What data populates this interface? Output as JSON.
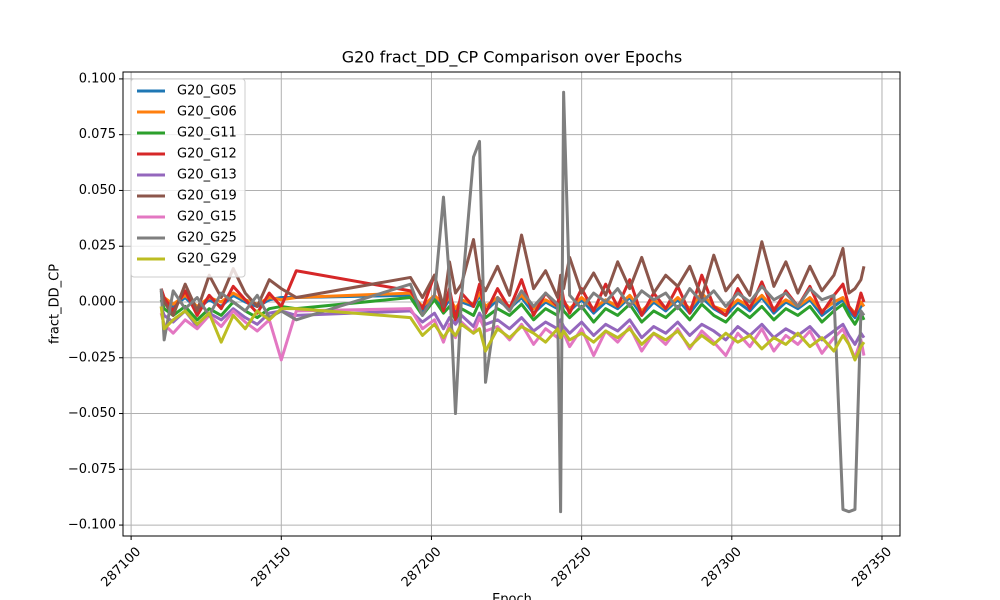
{
  "chart_data": {
    "type": "line",
    "title": "G20 fract_DD_CP Comparison over Epochs",
    "xlabel": "Epoch",
    "ylabel": "fract_DD_CP",
    "x": [
      287110,
      287111,
      287114,
      287118,
      287122,
      287126,
      287130,
      287134,
      287138,
      287142,
      287146,
      287150,
      287155,
      287193,
      287197,
      287201,
      287204,
      287206,
      287208,
      287210,
      287214,
      287216,
      287218,
      287222,
      287226,
      287230,
      287234,
      287238,
      287242,
      287243,
      287244,
      287246,
      287250,
      287254,
      287258,
      287262,
      287266,
      287270,
      287274,
      287278,
      287282,
      287286,
      287290,
      287294,
      287298,
      287302,
      287306,
      287310,
      287314,
      287318,
      287322,
      287326,
      287330,
      287334,
      287337,
      287339,
      287341,
      287343,
      287344
    ],
    "series": [
      {
        "name": "G20_G05",
        "color": "#1f77b4",
        "values": [
          0.003,
          0.001,
          -0.002,
          0.002,
          -0.003,
          0.001,
          -0.002,
          0.003,
          0.0,
          -0.002,
          0.001,
          0.002,
          0.002,
          0.003,
          -0.004,
          0.002,
          -0.003,
          0.001,
          -0.005,
          0.0,
          -0.002,
          0.003,
          -0.004,
          0.001,
          -0.003,
          0.002,
          -0.005,
          0.0,
          -0.003,
          0.002,
          -0.001,
          -0.004,
          0.001,
          -0.005,
          0.0,
          -0.003,
          0.002,
          -0.006,
          0.0,
          -0.004,
          0.001,
          -0.005,
          0.002,
          -0.003,
          -0.006,
          0.0,
          -0.004,
          0.002,
          -0.005,
          0.0,
          -0.003,
          0.001,
          -0.006,
          -0.002,
          0.001,
          -0.004,
          -0.007,
          -0.002,
          -0.001
        ]
      },
      {
        "name": "G20_G06",
        "color": "#ff7f0e",
        "values": [
          0.004,
          0.002,
          -0.001,
          0.003,
          -0.002,
          0.002,
          0.0,
          0.004,
          0.001,
          -0.001,
          0.002,
          0.001,
          0.002,
          0.004,
          -0.002,
          0.003,
          -0.001,
          0.002,
          -0.003,
          0.001,
          -0.001,
          0.004,
          -0.002,
          0.002,
          -0.002,
          0.003,
          -0.003,
          0.001,
          -0.002,
          0.003,
          0.0,
          -0.003,
          0.002,
          -0.003,
          0.001,
          -0.002,
          0.003,
          -0.004,
          0.001,
          -0.003,
          0.002,
          -0.003,
          0.004,
          -0.002,
          -0.004,
          0.001,
          -0.002,
          0.003,
          -0.003,
          0.001,
          -0.002,
          0.002,
          -0.004,
          0.0,
          0.002,
          -0.002,
          -0.005,
          0.0,
          -0.002
        ]
      },
      {
        "name": "G20_G11",
        "color": "#2ca02c",
        "values": [
          0.001,
          -0.003,
          -0.006,
          -0.002,
          -0.008,
          -0.003,
          -0.006,
          0.0,
          -0.004,
          -0.007,
          -0.003,
          -0.002,
          -0.003,
          0.002,
          -0.006,
          0.001,
          -0.005,
          -0.002,
          -0.008,
          -0.003,
          -0.006,
          0.0,
          -0.007,
          -0.003,
          -0.006,
          -0.001,
          -0.008,
          -0.003,
          -0.006,
          0.0,
          -0.004,
          -0.007,
          -0.002,
          -0.009,
          -0.003,
          -0.006,
          -0.001,
          -0.009,
          -0.004,
          -0.007,
          -0.002,
          -0.008,
          -0.001,
          -0.006,
          -0.009,
          -0.003,
          -0.007,
          -0.002,
          -0.008,
          -0.003,
          -0.006,
          -0.002,
          -0.009,
          -0.004,
          -0.001,
          -0.006,
          -0.01,
          -0.005,
          -0.008
        ]
      },
      {
        "name": "G20_G12",
        "color": "#d62728",
        "values": [
          0.006,
          0.002,
          -0.004,
          0.005,
          -0.006,
          0.003,
          -0.003,
          0.007,
          0.001,
          -0.005,
          0.004,
          -0.002,
          0.014,
          0.005,
          -0.003,
          0.012,
          -0.004,
          0.006,
          -0.008,
          0.004,
          -0.002,
          0.008,
          -0.005,
          0.006,
          -0.003,
          0.01,
          -0.006,
          0.004,
          -0.002,
          0.009,
          0.001,
          -0.005,
          0.006,
          -0.004,
          0.008,
          -0.002,
          0.01,
          -0.006,
          0.004,
          -0.003,
          0.007,
          -0.005,
          0.012,
          -0.002,
          -0.006,
          0.006,
          -0.003,
          0.009,
          -0.004,
          0.005,
          -0.002,
          0.007,
          -0.005,
          0.003,
          0.008,
          -0.002,
          -0.006,
          0.004,
          0.0
        ]
      },
      {
        "name": "G20_G13",
        "color": "#9467bd",
        "values": [
          -0.002,
          -0.006,
          -0.009,
          -0.004,
          -0.011,
          -0.005,
          -0.008,
          -0.003,
          -0.007,
          -0.01,
          -0.005,
          -0.004,
          -0.006,
          -0.004,
          -0.009,
          -0.005,
          -0.012,
          -0.007,
          -0.01,
          -0.006,
          -0.011,
          -0.005,
          -0.01,
          -0.008,
          -0.012,
          -0.007,
          -0.013,
          -0.009,
          -0.012,
          -0.008,
          -0.011,
          -0.014,
          -0.009,
          -0.015,
          -0.01,
          -0.013,
          -0.008,
          -0.016,
          -0.011,
          -0.014,
          -0.009,
          -0.015,
          -0.01,
          -0.013,
          -0.017,
          -0.011,
          -0.015,
          -0.01,
          -0.016,
          -0.012,
          -0.015,
          -0.011,
          -0.017,
          -0.013,
          -0.01,
          -0.015,
          -0.019,
          -0.014,
          -0.016
        ]
      },
      {
        "name": "G20_G19",
        "color": "#8c564b",
        "values": [
          0.005,
          0.0,
          -0.006,
          0.008,
          -0.004,
          0.012,
          0.002,
          0.015,
          0.004,
          -0.002,
          0.01,
          0.006,
          0.002,
          0.011,
          0.002,
          0.012,
          -0.002,
          0.018,
          0.004,
          0.008,
          0.028,
          0.01,
          0.005,
          0.016,
          0.003,
          0.03,
          0.006,
          0.014,
          0.002,
          0.012,
          0.006,
          0.02,
          0.004,
          0.013,
          0.003,
          0.018,
          0.006,
          0.02,
          0.004,
          0.012,
          0.007,
          0.016,
          0.002,
          0.021,
          0.005,
          0.012,
          0.003,
          0.027,
          0.007,
          0.018,
          0.004,
          0.016,
          0.005,
          0.012,
          0.024,
          0.004,
          0.006,
          0.01,
          0.016
        ]
      },
      {
        "name": "G20_G15",
        "color": "#e377c2",
        "values": [
          -0.005,
          -0.01,
          -0.014,
          -0.008,
          -0.012,
          -0.006,
          -0.011,
          -0.004,
          -0.009,
          -0.013,
          -0.008,
          -0.026,
          -0.004,
          -0.003,
          -0.012,
          -0.008,
          -0.018,
          -0.01,
          -0.016,
          -0.009,
          -0.014,
          -0.007,
          -0.013,
          -0.011,
          -0.017,
          -0.01,
          -0.019,
          -0.012,
          -0.016,
          -0.01,
          -0.014,
          -0.02,
          -0.012,
          -0.024,
          -0.013,
          -0.018,
          -0.011,
          -0.022,
          -0.014,
          -0.019,
          -0.012,
          -0.021,
          -0.013,
          -0.018,
          -0.024,
          -0.014,
          -0.02,
          -0.012,
          -0.022,
          -0.015,
          -0.019,
          -0.013,
          -0.023,
          -0.016,
          -0.012,
          -0.019,
          -0.025,
          -0.017,
          -0.024
        ]
      },
      {
        "name": "G20_G25",
        "color": "#7f7f7f",
        "values": [
          0.006,
          -0.017,
          0.005,
          -0.003,
          0.002,
          -0.006,
          0.004,
          0.0,
          -0.004,
          0.003,
          -0.007,
          -0.004,
          -0.008,
          0.008,
          -0.006,
          0.003,
          0.047,
          0.01,
          -0.05,
          0.002,
          0.065,
          0.072,
          -0.036,
          0.002,
          -0.004,
          0.005,
          -0.002,
          0.004,
          -0.001,
          -0.094,
          0.094,
          0.003,
          -0.003,
          0.004,
          0.0,
          0.006,
          -0.002,
          0.005,
          0.001,
          0.004,
          -0.003,
          0.006,
          0.0,
          0.005,
          -0.002,
          0.004,
          0.0,
          0.007,
          0.001,
          0.004,
          -0.002,
          0.006,
          0.001,
          0.003,
          -0.093,
          -0.094,
          -0.093,
          -0.004,
          -0.006
        ]
      },
      {
        "name": "G20_G29",
        "color": "#bcbd22",
        "values": [
          -0.002,
          -0.012,
          -0.008,
          -0.004,
          -0.01,
          -0.005,
          -0.018,
          -0.006,
          -0.012,
          -0.004,
          -0.008,
          -0.003,
          -0.003,
          -0.007,
          -0.015,
          -0.01,
          -0.016,
          -0.012,
          -0.015,
          -0.01,
          -0.014,
          -0.012,
          -0.022,
          -0.012,
          -0.016,
          -0.011,
          -0.014,
          -0.018,
          -0.012,
          -0.016,
          -0.013,
          -0.017,
          -0.014,
          -0.018,
          -0.013,
          -0.016,
          -0.012,
          -0.019,
          -0.014,
          -0.017,
          -0.013,
          -0.02,
          -0.015,
          -0.019,
          -0.014,
          -0.018,
          -0.015,
          -0.021,
          -0.016,
          -0.019,
          -0.014,
          -0.02,
          -0.016,
          -0.022,
          -0.015,
          -0.019,
          -0.026,
          -0.02,
          -0.018
        ]
      }
    ],
    "xlim": [
      287097.3,
      287356
    ],
    "xticks": [
      287100,
      287150,
      287200,
      287250,
      287300,
      287350
    ],
    "ylim": [
      -0.1049,
      0.1031
    ],
    "yticks": [
      {
        "value": -0.1,
        "label": "−0.100"
      },
      {
        "value": -0.075,
        "label": "−0.075"
      },
      {
        "value": -0.05,
        "label": "−0.050"
      },
      {
        "value": -0.025,
        "label": "−0.025"
      },
      {
        "value": 0,
        "label": "0.000"
      },
      {
        "value": 0.025,
        "label": "0.025"
      },
      {
        "value": 0.05,
        "label": "0.050"
      },
      {
        "value": 0.075,
        "label": "0.075"
      },
      {
        "value": 0.1,
        "label": "0.100"
      }
    ],
    "grid": true,
    "legend": "upper left"
  }
}
